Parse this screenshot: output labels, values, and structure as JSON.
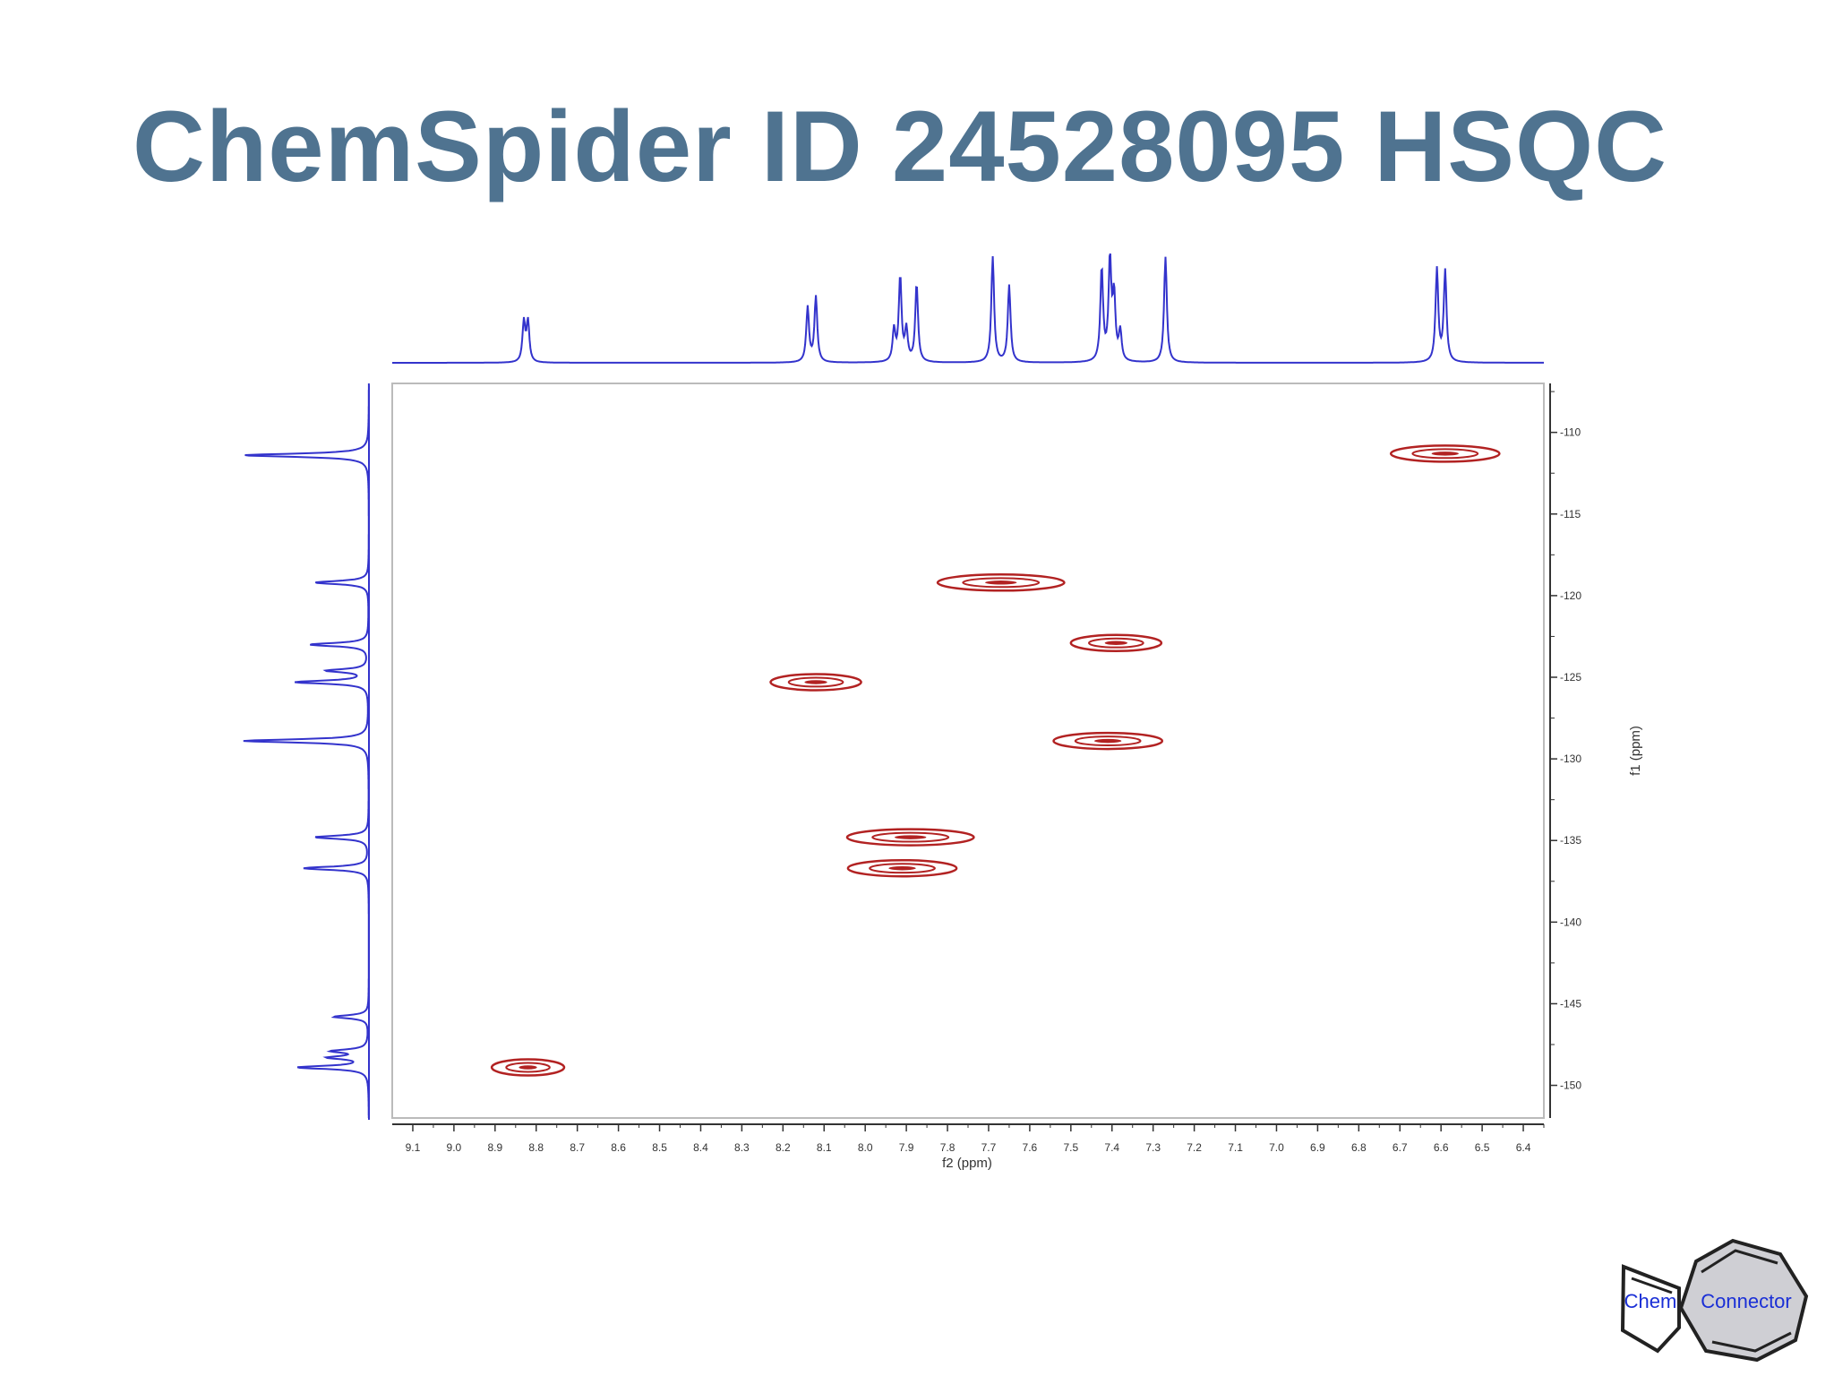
{
  "slide": {
    "title": "ChemSpider ID 24528095 HSQC"
  },
  "logo": {
    "left_word": "Chem",
    "right_word": "Connector"
  },
  "colors": {
    "title": "#4f7390",
    "spectrum_1d": "#3333cc",
    "contours": "#b22222",
    "logo_text": "#1a2fd6",
    "logo_fill": "#cfcfd4"
  },
  "chart_data": {
    "type": "scatter",
    "subtype": "2D NMR HSQC contour plot with 1D projections",
    "xlabel": "f2 (ppm)",
    "ylabel": "f1 (ppm)",
    "xlim": [
      9.15,
      6.35
    ],
    "ylim": [
      107,
      152
    ],
    "x_reversed": true,
    "y_reversed": true,
    "x_ticks": [
      "9.1",
      "9.0",
      "8.9",
      "8.8",
      "8.7",
      "8.6",
      "8.5",
      "8.4",
      "8.3",
      "8.2",
      "8.1",
      "8.0",
      "7.9",
      "7.8",
      "7.7",
      "7.6",
      "7.5",
      "7.4",
      "7.3",
      "7.2",
      "7.1",
      "7.0",
      "6.9",
      "6.8",
      "6.7",
      "6.6",
      "6.5",
      "6.4"
    ],
    "x_tick_values": [
      9.1,
      9.0,
      8.9,
      8.8,
      8.7,
      8.6,
      8.5,
      8.4,
      8.3,
      8.2,
      8.1,
      8.0,
      7.9,
      7.8,
      7.7,
      7.6,
      7.5,
      7.4,
      7.3,
      7.2,
      7.1,
      7.0,
      6.9,
      6.8,
      6.7,
      6.6,
      6.5,
      6.4
    ],
    "y_ticks": [
      "110",
      "115",
      "120",
      "125",
      "130",
      "135",
      "140",
      "145",
      "150"
    ],
    "y_tick_values": [
      110,
      115,
      120,
      125,
      130,
      135,
      140,
      145,
      150
    ],
    "cross_peaks": [
      {
        "x": 6.59,
        "y": 111.3,
        "w": 0.06
      },
      {
        "x": 7.67,
        "y": 119.2,
        "w": 0.07
      },
      {
        "x": 7.39,
        "y": 122.9,
        "w": 0.05
      },
      {
        "x": 8.12,
        "y": 125.3,
        "w": 0.05
      },
      {
        "x": 7.41,
        "y": 128.9,
        "w": 0.06
      },
      {
        "x": 7.89,
        "y": 134.8,
        "w": 0.07
      },
      {
        "x": 7.91,
        "y": 136.7,
        "w": 0.06
      },
      {
        "x": 8.82,
        "y": 148.9,
        "w": 0.04
      }
    ],
    "proton_1d_peaks": [
      {
        "x": 8.83,
        "h": 0.38
      },
      {
        "x": 8.82,
        "h": 0.38
      },
      {
        "x": 8.14,
        "h": 0.52
      },
      {
        "x": 8.12,
        "h": 0.62
      },
      {
        "x": 7.93,
        "h": 0.3
      },
      {
        "x": 7.915,
        "h": 0.8
      },
      {
        "x": 7.9,
        "h": 0.3
      },
      {
        "x": 7.875,
        "h": 0.74
      },
      {
        "x": 7.69,
        "h": 1.0
      },
      {
        "x": 7.65,
        "h": 0.73
      },
      {
        "x": 7.425,
        "h": 0.88
      },
      {
        "x": 7.405,
        "h": 0.95
      },
      {
        "x": 7.395,
        "h": 0.6
      },
      {
        "x": 7.38,
        "h": 0.28
      },
      {
        "x": 7.27,
        "h": 1.0
      },
      {
        "x": 6.61,
        "h": 0.88
      },
      {
        "x": 6.59,
        "h": 0.86
      }
    ],
    "carbon_1d_peaks": [
      {
        "y": 111.4,
        "h": 1.0
      },
      {
        "y": 119.2,
        "h": 0.43
      },
      {
        "y": 123.0,
        "h": 0.47
      },
      {
        "y": 124.6,
        "h": 0.33
      },
      {
        "y": 125.3,
        "h": 0.58
      },
      {
        "y": 128.9,
        "h": 1.0
      },
      {
        "y": 134.8,
        "h": 0.43
      },
      {
        "y": 136.7,
        "h": 0.52
      },
      {
        "y": 145.8,
        "h": 0.28
      },
      {
        "y": 147.9,
        "h": 0.28
      },
      {
        "y": 148.3,
        "h": 0.3
      },
      {
        "y": 148.9,
        "h": 0.56
      }
    ]
  }
}
